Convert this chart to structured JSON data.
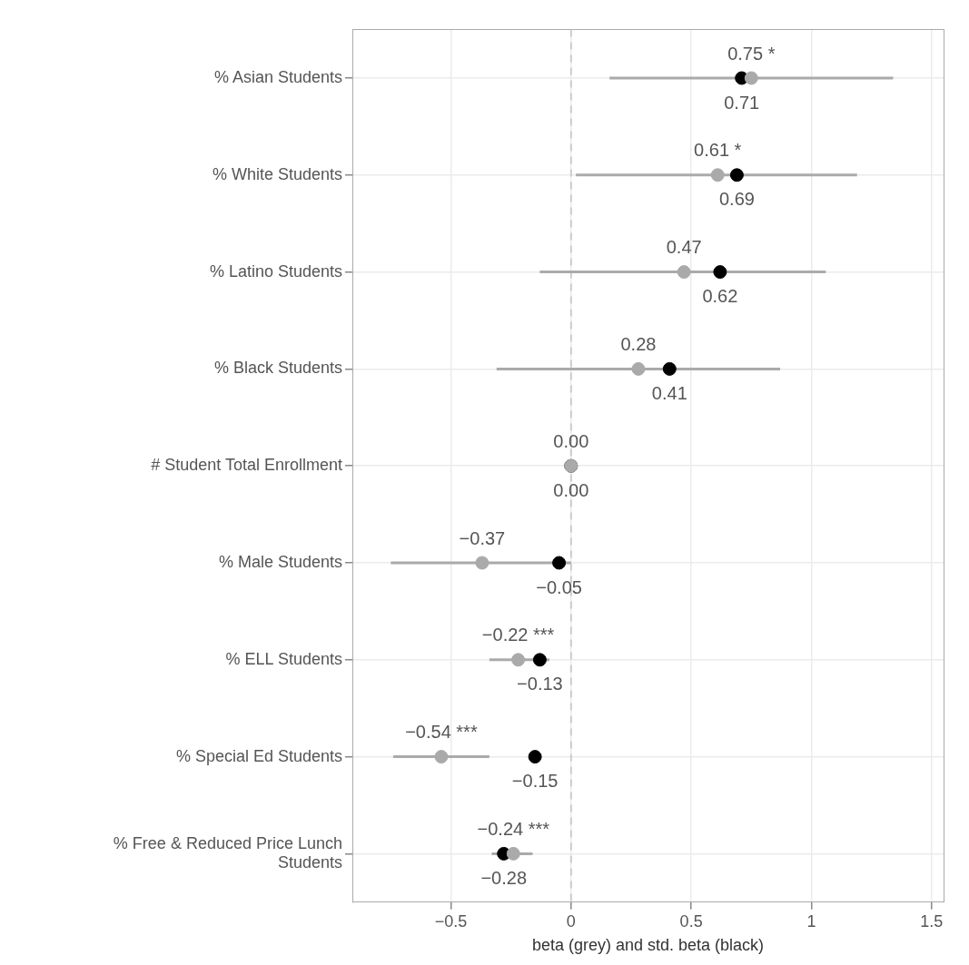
{
  "chart_data": {
    "type": "scatter",
    "orientation": "horizontal",
    "xlabel": "beta (grey) and std. beta (black)",
    "categories": [
      "% Asian Students",
      "% White Students",
      "% Latino Students",
      "% Black Students",
      "# Student Total Enrollment",
      "% Male Students",
      "% ELL Students",
      "% Special Ed Students",
      "% Free & Reduced Price Lunch Students"
    ],
    "series": [
      {
        "color": "#aaaaaa",
        "values": [
          0.75,
          0.61,
          0.47,
          0.28,
          0.0,
          -0.37,
          -0.22,
          -0.54,
          -0.24
        ],
        "errors": [
          [
            0.16,
            1.34
          ],
          [
            0.02,
            1.19
          ],
          [
            -0.13,
            1.06
          ],
          [
            -0.31,
            0.87
          ],
          null,
          [
            -0.75,
            0.0
          ],
          [
            -0.34,
            -0.09
          ],
          [
            -0.74,
            -0.34
          ],
          [
            -0.33,
            -0.16
          ]
        ],
        "value_labels": [
          "0.75 *",
          "0.61 *",
          "0.47",
          "0.28",
          "0.00",
          "−0.37",
          "−0.22 ***",
          "−0.54 ***",
          "−0.24 ***"
        ]
      },
      {
        "color": "#000000",
        "values": [
          0.71,
          0.69,
          0.62,
          0.41,
          0.0,
          -0.05,
          -0.13,
          -0.15,
          -0.28
        ],
        "value_labels": [
          "0.71",
          "0.69",
          "0.62",
          "0.41",
          "0.00",
          "−0.05",
          "−0.13",
          "−0.15",
          "−0.28"
        ]
      }
    ],
    "xlim": [
      -0.91,
      1.55
    ],
    "xticks": [
      {
        "value": -0.5,
        "label": "−0.5"
      },
      0,
      {
        "value": 0.5,
        "label": "0.5"
      },
      1,
      {
        "value": 1.5,
        "label": "1.5"
      }
    ],
    "ref_lines": [
      {
        "axis": "x",
        "value": 0,
        "color": "#cccccc",
        "line_style": "dashed"
      }
    ],
    "grid": true,
    "legend": false,
    "marker": "circle"
  }
}
